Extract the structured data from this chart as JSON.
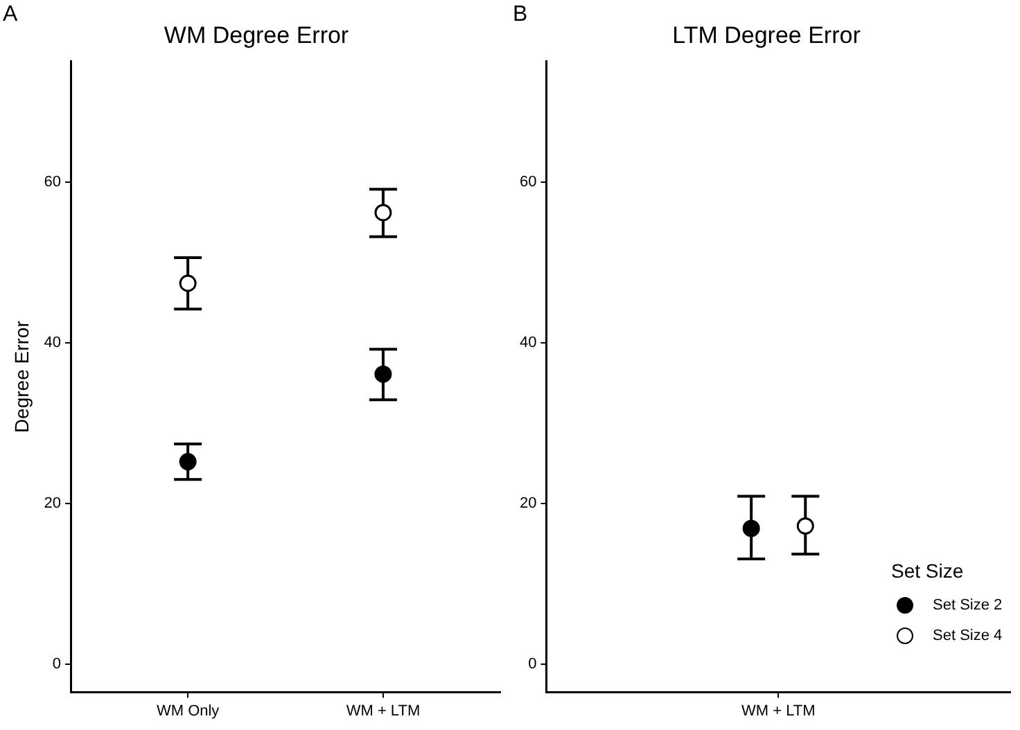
{
  "chart_data": [
    {
      "type": "scatter",
      "title": "WM Degree Error",
      "ylabel": "Degree Error",
      "annotations": [
        "A"
      ],
      "categories": [
        "WM Only",
        "WM + LTM"
      ],
      "series": [
        {
          "color": "#000000",
          "values": [
            25.2,
            36.1
          ],
          "errors": [
            [
              23.0,
              27.4
            ],
            [
              32.9,
              39.2
            ]
          ]
        },
        {
          "color": "#ffffff",
          "values": [
            47.4,
            56.2
          ],
          "errors": [
            [
              44.2,
              50.6
            ],
            [
              53.2,
              59.1
            ]
          ]
        }
      ],
      "ylim": [
        -3.5,
        75
      ],
      "yticks": [
        0,
        20,
        40,
        60
      ],
      "grid": false,
      "legend": false,
      "marker": "circle"
    },
    {
      "type": "scatter",
      "title": "LTM Degree Error",
      "annotations": [
        "B"
      ],
      "categories": [
        "WM + LTM"
      ],
      "legend_title": "Set Size",
      "series": [
        {
          "name": "Set Size 2",
          "color": "#000000",
          "values": [
            16.9
          ],
          "errors": [
            [
              13.1,
              20.9
            ]
          ]
        },
        {
          "name": "Set Size 4",
          "color": "#ffffff",
          "values": [
            17.2
          ],
          "errors": [
            [
              13.7,
              20.9
            ]
          ]
        }
      ],
      "ylim": [
        -3.5,
        75
      ],
      "yticks": [
        0,
        20,
        40,
        60
      ],
      "grid": false,
      "legend": "bottom right",
      "marker": "circle"
    }
  ]
}
